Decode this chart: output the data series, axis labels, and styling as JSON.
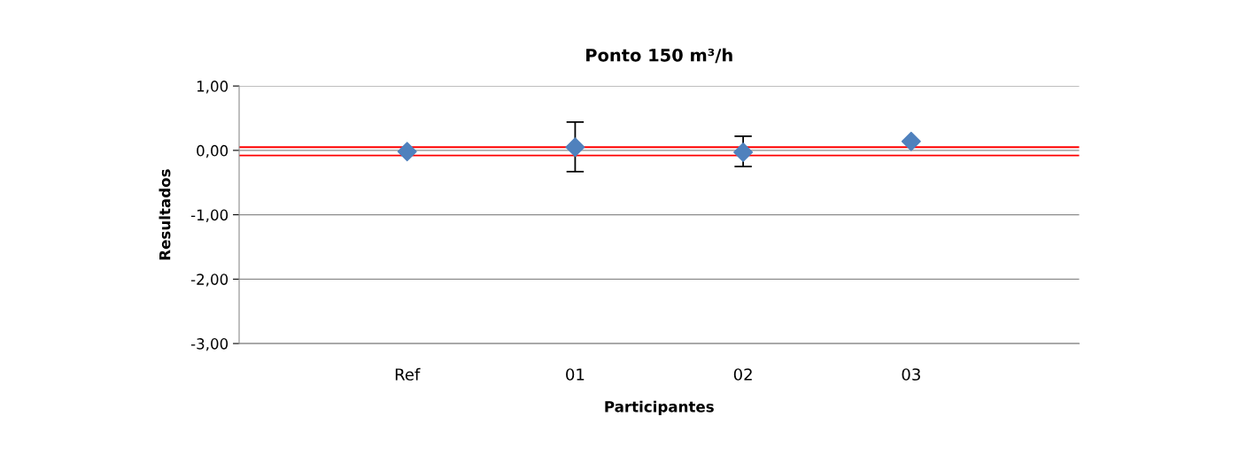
{
  "chart_data": {
    "type": "scatter",
    "title": "Ponto 150 m³/h",
    "xlabel": "Participantes",
    "ylabel": "Resultados",
    "categories": [
      "Ref",
      "01",
      "02",
      "03"
    ],
    "series": [
      {
        "color": "#4f81bd",
        "values": [
          -0.02,
          0.05,
          -0.03,
          0.14
        ],
        "errors": [
          null,
          [
            -0.33,
            0.44
          ],
          [
            -0.25,
            0.22
          ],
          null
        ]
      }
    ],
    "ylim": [
      -3,
      1
    ],
    "yticks": [
      {
        "value": -3,
        "label": "-3,00"
      },
      {
        "value": -2,
        "label": "-2,00"
      },
      {
        "value": -1,
        "label": "-1,00"
      },
      {
        "value": 0,
        "label": "0,00"
      },
      {
        "value": 1,
        "label": "1,00"
      }
    ],
    "ref_lines": [
      {
        "axis": "y",
        "value": 0.05,
        "color": "#ff0000"
      },
      {
        "axis": "y",
        "value": -0.08,
        "color": "#ff0000"
      }
    ],
    "grid": "y",
    "legend": false,
    "marker": "diamond"
  }
}
